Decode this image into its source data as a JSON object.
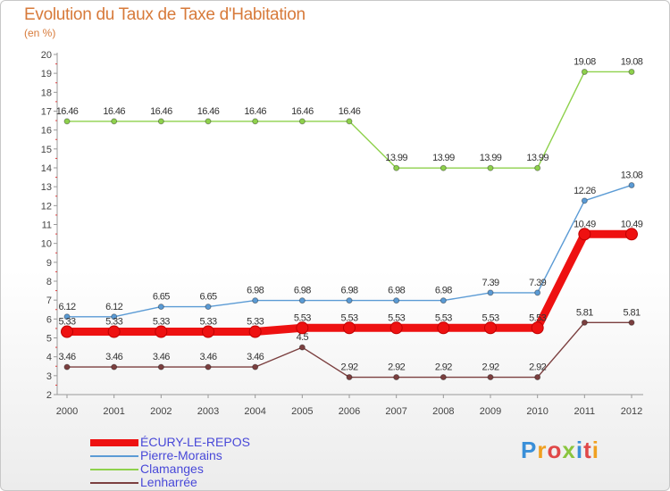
{
  "title": "Evolution du Taux de Taxe d'Habitation",
  "subtitle": "(en %)",
  "logo_text": "Proxiti",
  "chart_data": {
    "type": "line",
    "title": "Evolution du Taux de Taxe d'Habitation",
    "ylabel": "(en %)",
    "xlabel": "",
    "ylim": [
      2,
      20
    ],
    "y_ticks": [
      "2",
      "3",
      "4",
      "5",
      "6",
      "7",
      "8",
      "9",
      "10",
      "11",
      "12",
      "13",
      "14",
      "15",
      "16",
      "17",
      "18",
      "19",
      "20"
    ],
    "categories": [
      "2000",
      "2001",
      "2002",
      "2003",
      "2004",
      "2005",
      "2006",
      "2007",
      "2008",
      "2009",
      "2010",
      "2011",
      "2012"
    ],
    "grid": false,
    "legend_position": "bottom-left",
    "series": [
      {
        "name": "Clamanges",
        "color": "#8ed14c",
        "values": [
          16.46,
          16.46,
          16.46,
          16.46,
          16.46,
          16.46,
          16.46,
          13.99,
          13.99,
          13.99,
          13.99,
          19.08,
          19.08
        ],
        "labels": [
          "16.46",
          "16.46",
          "16.46",
          "16.46",
          "16.46",
          "16.46",
          "16.46",
          "13.99",
          "13.99",
          "13.99",
          "13.99",
          "19.08",
          "19.08"
        ]
      },
      {
        "name": "Pierre-Morains",
        "color": "#5b9bd5",
        "values": [
          6.12,
          6.12,
          6.65,
          6.65,
          6.98,
          6.98,
          6.98,
          6.98,
          6.98,
          7.39,
          7.39,
          12.26,
          13.08
        ],
        "labels": [
          "6.12",
          "6.12",
          "6.65",
          "6.65",
          "6.98",
          "6.98",
          "6.98",
          "6.98",
          "6.98",
          "7.39",
          "7.39",
          "12.26",
          "13.08"
        ]
      },
      {
        "name": "Lenharrée",
        "color": "#7b3f3f",
        "values": [
          3.46,
          3.46,
          3.46,
          3.46,
          3.46,
          4.5,
          2.92,
          2.92,
          2.92,
          2.92,
          2.92,
          5.81,
          5.81
        ],
        "labels": [
          "3.46",
          "3.46",
          "3.46",
          "3.46",
          "3.46",
          "4.5",
          "2.92",
          "2.92",
          "2.92",
          "2.92",
          "2.92",
          "5.81",
          "5.81"
        ]
      },
      {
        "name": "ÉCURY-LE-REPOS",
        "color": "#ee1111",
        "values": [
          5.33,
          5.33,
          5.33,
          5.33,
          5.33,
          5.53,
          5.53,
          5.53,
          5.53,
          5.53,
          5.53,
          10.49,
          10.49
        ],
        "labels": [
          "5.33",
          "5.33",
          "5.33",
          "5.33",
          "5.33",
          "5.53",
          "5.53",
          "5.53",
          "5.53",
          "5.53",
          "5.53",
          "10.49",
          "10.49"
        ]
      }
    ],
    "legend": [
      {
        "name": "ÉCURY-LE-REPOS",
        "color": "#ee1111"
      },
      {
        "name": "Pierre-Morains",
        "color": "#5b9bd5"
      },
      {
        "name": "Clamanges",
        "color": "#8ed14c"
      },
      {
        "name": "Lenharrée",
        "color": "#7b3f3f"
      }
    ]
  }
}
